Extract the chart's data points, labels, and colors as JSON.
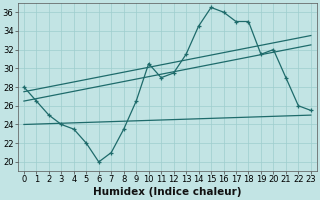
{
  "xlabel": "Humidex (Indice chaleur)",
  "xlim": [
    -0.5,
    23.5
  ],
  "ylim": [
    19,
    37
  ],
  "yticks": [
    20,
    22,
    24,
    26,
    28,
    30,
    32,
    34,
    36
  ],
  "xticks": [
    0,
    1,
    2,
    3,
    4,
    5,
    6,
    7,
    8,
    9,
    10,
    11,
    12,
    13,
    14,
    15,
    16,
    17,
    18,
    19,
    20,
    21,
    22,
    23
  ],
  "bg_color": "#c2e4e4",
  "grid_color": "#9ecece",
  "line_color": "#1e6b6b",
  "line1_x": [
    0,
    1,
    2,
    3,
    4,
    5,
    6,
    7,
    8,
    9,
    10,
    11,
    12,
    13,
    14,
    15,
    16,
    17,
    18,
    19,
    20,
    21,
    22,
    23
  ],
  "line1_y": [
    28,
    26.5,
    25,
    24,
    23.5,
    22,
    20,
    21,
    23.5,
    26.5,
    30.5,
    29,
    29.5,
    31.5,
    34.5,
    36.5,
    36,
    35,
    35,
    31.5,
    32,
    29,
    26,
    25.5
  ],
  "line2_x": [
    0,
    23
  ],
  "line2_y": [
    24.0,
    25.0
  ],
  "line3_x": [
    0,
    23
  ],
  "line3_y": [
    26.5,
    32.5
  ],
  "line4_x": [
    0,
    23
  ],
  "line4_y": [
    27.5,
    33.5
  ],
  "tick_fontsize": 6,
  "label_fontsize": 7.5
}
